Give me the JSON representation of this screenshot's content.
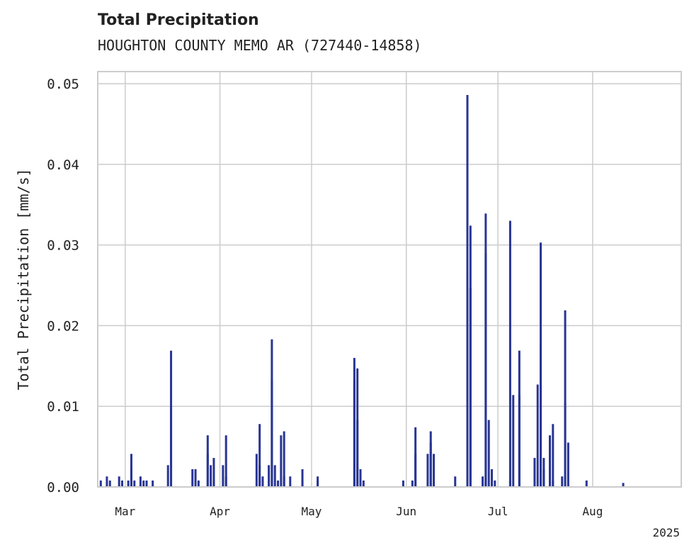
{
  "chart_data": {
    "type": "bar",
    "title": "Total Precipitation",
    "subtitle": "HOUGHTON COUNTY MEMO AR (727440-14858)",
    "xlabel": "",
    "ylabel": "Total Precipitation [mm/s]",
    "ylim": [
      0,
      0.0515
    ],
    "yticks": [
      0.0,
      0.01,
      0.02,
      0.03,
      0.04,
      0.05
    ],
    "ytick_labels": [
      "0.00",
      "0.01",
      "0.02",
      "0.03",
      "0.04",
      "0.05"
    ],
    "xlim": [
      "2025-02-20",
      "2025-08-30"
    ],
    "xticks": [
      {
        "date": "2025-03-01",
        "label": "Mar"
      },
      {
        "date": "2025-04-01",
        "label": "Apr"
      },
      {
        "date": "2025-05-01",
        "label": "May"
      },
      {
        "date": "2025-06-01",
        "label": "Jun"
      },
      {
        "date": "2025-07-01",
        "label": "Jul"
      },
      {
        "date": "2025-08-01",
        "label": "Aug"
      }
    ],
    "year_label": "2025",
    "grid": true,
    "color": "#283593",
    "series": [
      {
        "name": "Total Precipitation",
        "points": [
          [
            "2025-02-21",
            0.0008
          ],
          [
            "2025-02-23",
            0.0013
          ],
          [
            "2025-02-24",
            0.0008
          ],
          [
            "2025-02-27",
            0.0013
          ],
          [
            "2025-02-28",
            0.0008
          ],
          [
            "2025-03-02",
            0.0008
          ],
          [
            "2025-03-03",
            0.0025
          ],
          [
            "2025-03-03",
            0.0041
          ],
          [
            "2025-03-04",
            0.0008
          ],
          [
            "2025-03-06",
            0.0013
          ],
          [
            "2025-03-07",
            0.0008
          ],
          [
            "2025-03-08",
            0.0008
          ],
          [
            "2025-03-10",
            0.0008
          ],
          [
            "2025-03-15",
            0.0027
          ],
          [
            "2025-03-16",
            0.01
          ],
          [
            "2025-03-16",
            0.0169
          ],
          [
            "2025-03-23",
            0.0022
          ],
          [
            "2025-03-24",
            0.0022
          ],
          [
            "2025-03-25",
            0.0008
          ],
          [
            "2025-03-28",
            0.0041
          ],
          [
            "2025-03-28",
            0.0064
          ],
          [
            "2025-03-29",
            0.0027
          ],
          [
            "2025-03-30",
            0.0036
          ],
          [
            "2025-03-30",
            0.0008
          ],
          [
            "2025-04-02",
            0.0027
          ],
          [
            "2025-04-03",
            0.0064
          ],
          [
            "2025-04-03",
            0.0013
          ],
          [
            "2025-04-13",
            0.0041
          ],
          [
            "2025-04-14",
            0.0078
          ],
          [
            "2025-04-14",
            0.0027
          ],
          [
            "2025-04-15",
            0.0013
          ],
          [
            "2025-04-17",
            0.0027
          ],
          [
            "2025-04-18",
            0.0133
          ],
          [
            "2025-04-18",
            0.0183
          ],
          [
            "2025-04-19",
            0.0027
          ],
          [
            "2025-04-20",
            0.0008
          ],
          [
            "2025-04-21",
            0.0064
          ],
          [
            "2025-04-22",
            0.0069
          ],
          [
            "2025-04-22",
            0.0013
          ],
          [
            "2025-04-24",
            0.0013
          ],
          [
            "2025-04-28",
            0.0022
          ],
          [
            "2025-04-28",
            0.0008
          ],
          [
            "2025-05-03",
            0.0013
          ],
          [
            "2025-05-03",
            0.0008
          ],
          [
            "2025-05-15",
            0.0133
          ],
          [
            "2025-05-15",
            0.016
          ],
          [
            "2025-05-16",
            0.0083
          ],
          [
            "2025-05-16",
            0.0147
          ],
          [
            "2025-05-17",
            0.0022
          ],
          [
            "2025-05-18",
            0.0008
          ],
          [
            "2025-05-31",
            0.0008
          ],
          [
            "2025-06-03",
            0.0008
          ],
          [
            "2025-06-04",
            0.0074
          ],
          [
            "2025-06-04",
            0.0041
          ],
          [
            "2025-06-08",
            0.0041
          ],
          [
            "2025-06-09",
            0.0069
          ],
          [
            "2025-06-09",
            0.0055
          ],
          [
            "2025-06-10",
            0.0041
          ],
          [
            "2025-06-17",
            0.0013
          ],
          [
            "2025-06-21",
            0.027
          ],
          [
            "2025-06-21",
            0.0486
          ],
          [
            "2025-06-22",
            0.0324
          ],
          [
            "2025-06-22",
            0.0247
          ],
          [
            "2025-06-26",
            0.0013
          ],
          [
            "2025-06-27",
            0.0008
          ],
          [
            "2025-06-27",
            0.029
          ],
          [
            "2025-06-27",
            0.0339
          ],
          [
            "2025-06-28",
            0.0083
          ],
          [
            "2025-06-29",
            0.0022
          ],
          [
            "2025-06-30",
            0.0008
          ],
          [
            "2025-07-05",
            0.0008
          ],
          [
            "2025-07-05",
            0.033
          ],
          [
            "2025-07-06",
            0.0114
          ],
          [
            "2025-07-08",
            0.0169
          ],
          [
            "2025-07-08",
            0.0114
          ],
          [
            "2025-07-13",
            0.0036
          ],
          [
            "2025-07-14",
            0.0127
          ],
          [
            "2025-07-15",
            0.0303
          ],
          [
            "2025-07-15",
            0.0177
          ],
          [
            "2025-07-16",
            0.0036
          ],
          [
            "2025-07-16",
            0.0022
          ],
          [
            "2025-07-18",
            0.0041
          ],
          [
            "2025-07-18",
            0.0064
          ],
          [
            "2025-07-19",
            0.0078
          ],
          [
            "2025-07-19",
            0.0008
          ],
          [
            "2025-07-22",
            0.0013
          ],
          [
            "2025-07-23",
            0.0219
          ],
          [
            "2025-07-23",
            0.0105
          ],
          [
            "2025-07-24",
            0.0055
          ],
          [
            "2025-07-30",
            0.0008
          ],
          [
            "2025-08-11",
            0.0005
          ]
        ]
      }
    ]
  }
}
